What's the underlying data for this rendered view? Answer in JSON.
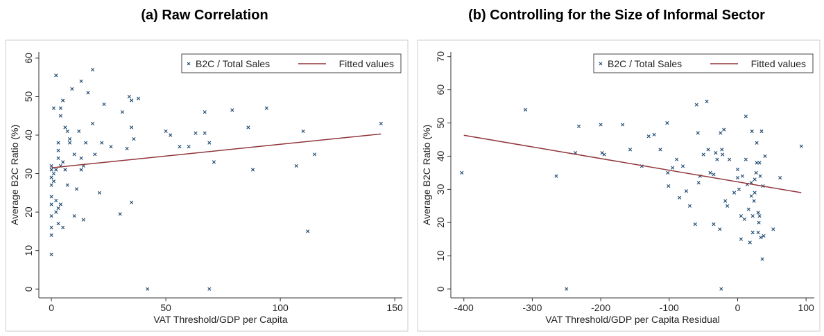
{
  "chart_data": [
    {
      "type": "scatter",
      "title": "(a) Raw Correlation",
      "x_label": "VAT Threshold/GDP per Capita",
      "y_label": "Average B2C Ratio (%)",
      "xlim": [
        -5.5,
        153.3
      ],
      "ylim": [
        -2.3,
        61.6
      ],
      "xticks": [
        0,
        50,
        100,
        150
      ],
      "yticks": [
        0,
        10,
        20,
        30,
        40,
        50,
        60
      ],
      "grid": false,
      "legend": "top-right",
      "series": [
        {
          "name": "B2C / Total Sales",
          "color": "#1a476f",
          "marker": "x",
          "x": [
            0,
            0,
            0,
            0,
            0,
            0,
            0,
            0,
            0,
            0,
            1,
            2,
            1,
            1,
            2,
            2,
            2,
            3,
            3,
            3,
            3,
            3,
            4,
            4,
            4,
            4,
            5,
            5,
            5,
            6,
            6,
            7,
            7,
            8,
            8,
            9,
            10,
            10,
            11,
            12,
            13,
            13,
            13,
            14,
            14,
            15,
            16,
            18,
            18,
            19,
            21,
            22,
            23,
            26,
            30,
            31,
            33,
            34,
            35,
            35,
            35,
            36,
            38,
            42,
            50,
            52,
            56,
            60,
            63,
            67,
            67,
            69,
            69,
            71,
            79,
            86,
            88,
            94,
            107,
            110,
            112,
            115,
            144
          ],
          "values": [
            9,
            14,
            16,
            19,
            22,
            24,
            27,
            29,
            31,
            32,
            47,
            55.5,
            28,
            30,
            20,
            23,
            31,
            17,
            21,
            34,
            36,
            38,
            45,
            47,
            22,
            32,
            33,
            49,
            16,
            42,
            31,
            41,
            27,
            39,
            38,
            52,
            35,
            19,
            26,
            41,
            54,
            34,
            31,
            18,
            32,
            38,
            51,
            57,
            43,
            35,
            25,
            38,
            48,
            37,
            19.5,
            46,
            36.5,
            50,
            49,
            42,
            22.5,
            39,
            49.5,
            0,
            41,
            40,
            37,
            37,
            40.5,
            46,
            40.5,
            38,
            0,
            33,
            46.5,
            42,
            31,
            47,
            32,
            41,
            15,
            35,
            43
          ]
        },
        {
          "name": "Fitted values",
          "color": "#90353b",
          "marker": "line",
          "x": [
            0,
            144
          ],
          "values": [
            31.5,
            40.3
          ]
        }
      ]
    },
    {
      "type": "scatter",
      "title": "(b) Controlling for the Size of Informal Sector",
      "x_label": "VAT Threshold/GDP per Capita Residual",
      "y_label": "Average B2C Ratio (%)",
      "xlim": [
        -419,
        112
      ],
      "ylim": [
        -2.7,
        71.4
      ],
      "xticks": [
        -400,
        -300,
        -200,
        -100,
        0,
        100
      ],
      "yticks": [
        0,
        10,
        20,
        30,
        40,
        50,
        60,
        70
      ],
      "grid": false,
      "legend": "top-right",
      "series": [
        {
          "name": "B2C / Total Sales",
          "color": "#1a476f",
          "marker": "x",
          "x": [
            -403,
            -310,
            -265,
            -250,
            -237,
            -232,
            -200,
            -198,
            -195,
            -168,
            -157,
            -140,
            -130,
            -122,
            -113,
            -103,
            -102,
            -101,
            -95,
            -89,
            -85,
            -80,
            -75,
            -70,
            -62,
            -60,
            -58,
            -57,
            -55,
            -50,
            -45,
            -43,
            -40,
            -35,
            -35,
            -32,
            -30,
            -26,
            -25,
            -24,
            -23,
            -22,
            -20,
            -18,
            -15,
            -12,
            -5,
            0,
            0,
            2,
            5,
            5,
            7,
            10,
            12,
            12,
            14,
            16,
            18,
            20,
            20,
            21,
            22,
            22,
            24,
            25,
            25,
            27,
            28,
            28,
            30,
            30,
            31,
            32,
            32,
            33,
            34,
            35,
            36,
            37,
            38,
            40,
            52,
            62,
            93
          ],
          "values": [
            35,
            54,
            34,
            0,
            41,
            49,
            49.5,
            41,
            40.5,
            49.5,
            42,
            37,
            46,
            46.5,
            42,
            50,
            35,
            31,
            36.5,
            39,
            27.5,
            37,
            29.5,
            25,
            19.5,
            55.5,
            47,
            32,
            34,
            40.5,
            56.5,
            42,
            35,
            19.5,
            34.5,
            41,
            39,
            18,
            47,
            0,
            42,
            40.5,
            48,
            26.5,
            25,
            39,
            29,
            36,
            33.5,
            30,
            22,
            15,
            34,
            21,
            52,
            39,
            31.5,
            24,
            14,
            32,
            28,
            47.5,
            17,
            22,
            26.5,
            29,
            33,
            35,
            44,
            38,
            23,
            17,
            20,
            22,
            38,
            34,
            15.5,
            47.5,
            9,
            31,
            16,
            40,
            18,
            33.5,
            43
          ]
        },
        {
          "name": "Fitted values",
          "color": "#90353b",
          "marker": "line",
          "x": [
            -400,
            93
          ],
          "values": [
            46.3,
            29
          ]
        }
      ]
    }
  ]
}
